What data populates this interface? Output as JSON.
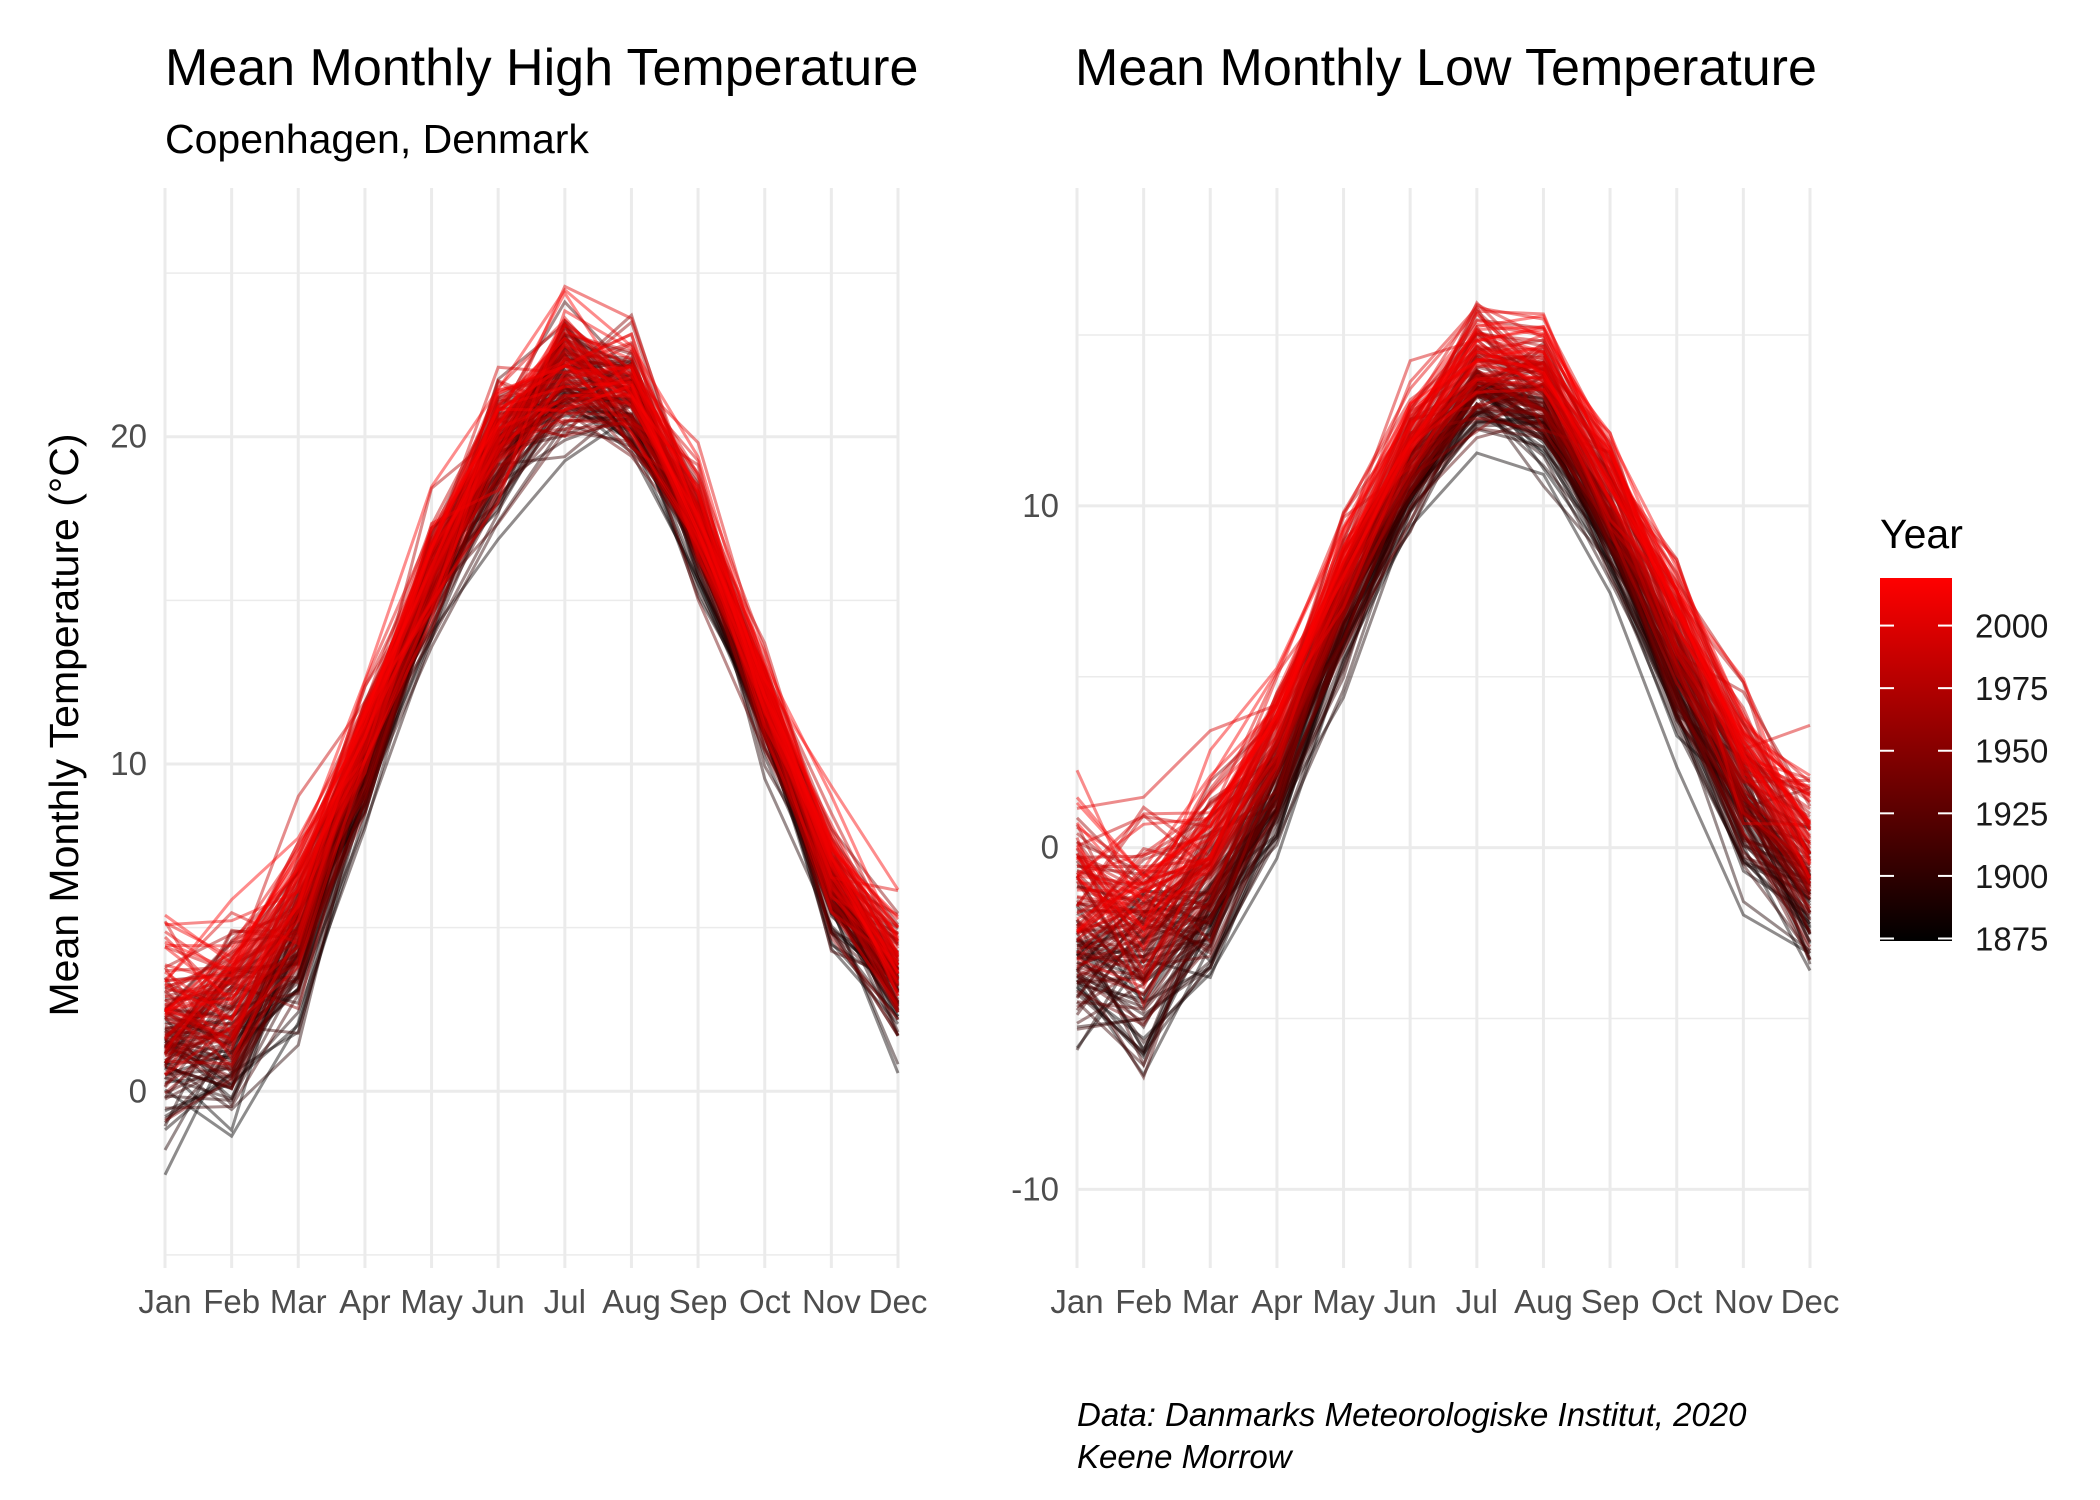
{
  "figure": {
    "caption_line1": "Data: Danmarks Meteorologiske Institut, 2020",
    "caption_line2": "Keene Morrow",
    "legend": {
      "title": "Year",
      "ticks": [
        "1875",
        "1900",
        "1925",
        "1950",
        "1975",
        "2000"
      ],
      "tick_values": [
        1875,
        1900,
        1925,
        1950,
        1975,
        2000
      ],
      "range": [
        1874,
        2019
      ],
      "low_color": "#000000",
      "high_color": "#ff0000"
    }
  },
  "chart_data": [
    {
      "type": "line",
      "title": "Mean Monthly High Temperature",
      "subtitle": "Copenhagen, Denmark",
      "ylabel": "Mean Monthly Temperature (°C)",
      "xlabel": "",
      "categories": [
        "Jan",
        "Feb",
        "Mar",
        "Apr",
        "May",
        "Jun",
        "Jul",
        "Aug",
        "Sep",
        "Oct",
        "Nov",
        "Dec"
      ],
      "yticks": [
        0,
        10,
        20
      ],
      "ylim": [
        -5.4,
        27.6
      ],
      "grid": true,
      "series_note_years": [
        1874,
        2019
      ],
      "mean_values": {
        "early": [
          0.5,
          0.7,
          3.5,
          9.0,
          15.0,
          19.0,
          21.5,
          20.5,
          16.5,
          11.0,
          5.5,
          2.5
        ],
        "late": [
          3.5,
          4.0,
          6.8,
          11.5,
          16.5,
          20.5,
          22.5,
          22.0,
          18.0,
          12.5,
          7.5,
          4.5
        ]
      },
      "spread": [
        2.8,
        3.2,
        2.5,
        2.0,
        2.2,
        2.4,
        2.5,
        2.4,
        1.8,
        1.6,
        1.6,
        2.0
      ]
    },
    {
      "type": "line",
      "title": "Mean Monthly Low Temperature",
      "subtitle": "",
      "ylabel": "",
      "xlabel": "",
      "categories": [
        "Jan",
        "Feb",
        "Mar",
        "Apr",
        "May",
        "Jun",
        "Jul",
        "Aug",
        "Sep",
        "Oct",
        "Nov",
        "Dec"
      ],
      "yticks": [
        -10,
        0,
        10
      ],
      "ylim": [
        -12.3,
        19.3
      ],
      "grid": true,
      "series_note_years": [
        1874,
        2019
      ],
      "mean_values": {
        "early": [
          -4.0,
          -4.5,
          -2.5,
          1.0,
          6.0,
          10.0,
          12.5,
          12.0,
          8.5,
          4.0,
          0.0,
          -2.5
        ],
        "late": [
          -0.3,
          -0.6,
          0.9,
          4.4,
          8.9,
          12.6,
          15.0,
          14.7,
          11.5,
          7.6,
          3.6,
          1.0
        ]
      },
      "spread": [
        3.2,
        3.6,
        2.6,
        1.6,
        1.6,
        1.6,
        1.6,
        1.6,
        1.6,
        1.8,
        2.0,
        2.6
      ]
    }
  ]
}
